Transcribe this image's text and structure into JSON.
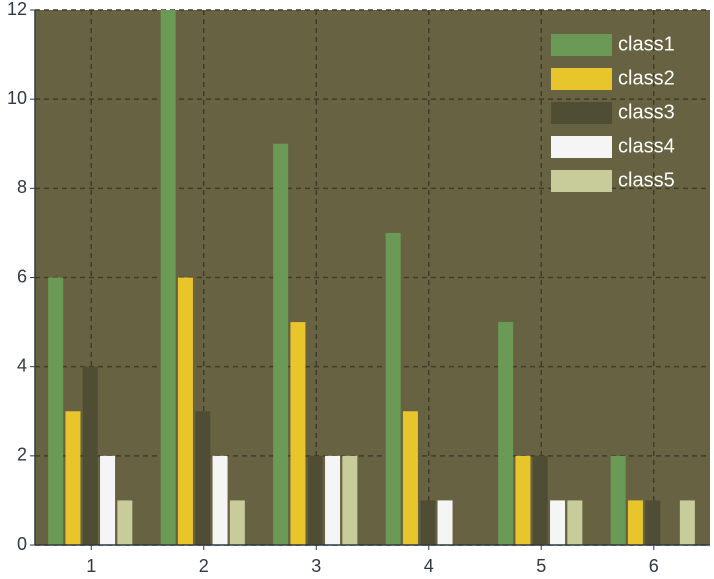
{
  "chart_data": {
    "type": "bar",
    "categories": [
      "1",
      "2",
      "3",
      "4",
      "5",
      "6"
    ],
    "series": [
      {
        "name": "class1",
        "color": "#6a9a55",
        "values": [
          6,
          12,
          9,
          7,
          5,
          2
        ]
      },
      {
        "name": "class2",
        "color": "#e8c52a",
        "values": [
          3,
          6,
          5,
          3,
          2,
          1
        ]
      },
      {
        "name": "class3",
        "color": "#4f4d34",
        "values": [
          4,
          3,
          2,
          1,
          2,
          1
        ]
      },
      {
        "name": "class4",
        "color": "#f5f5f5",
        "values": [
          2,
          2,
          2,
          1,
          1,
          0
        ]
      },
      {
        "name": "class5",
        "color": "#c8cc9a",
        "values": [
          1,
          1,
          2,
          0,
          1,
          1
        ]
      }
    ],
    "ylim": [
      0,
      12
    ],
    "yticks": [
      0,
      2,
      4,
      6,
      8,
      10,
      12
    ],
    "grid": true,
    "legend": "upper-right",
    "plot_background": "#676342"
  }
}
